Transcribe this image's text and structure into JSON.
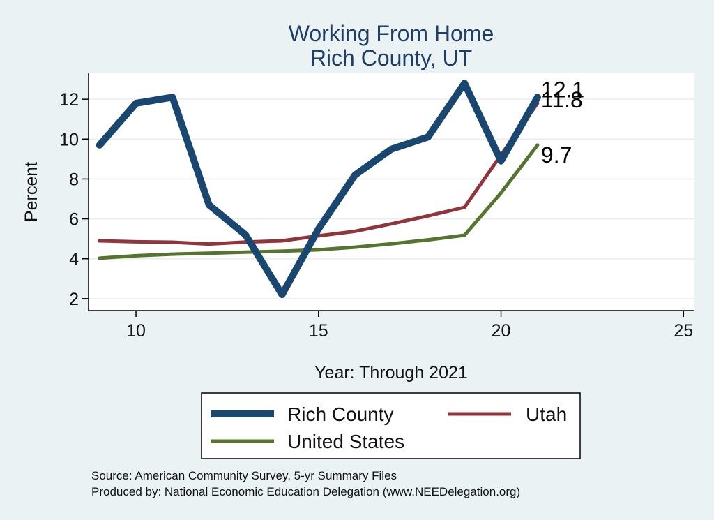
{
  "chart_data": {
    "type": "line",
    "title": "Working From Home",
    "subtitle": "Rich County, UT",
    "xlabel": "Year: Through 2021",
    "ylabel": "Percent",
    "xlim": [
      8.7,
      25.3
    ],
    "ylim": [
      1.4,
      13.3
    ],
    "x_ticks": [
      10,
      15,
      20,
      25
    ],
    "y_ticks": [
      2,
      4,
      6,
      8,
      10,
      12
    ],
    "grid": true,
    "legend_position": "bottom",
    "x": [
      9,
      10,
      11,
      12,
      13,
      14,
      15,
      16,
      17,
      18,
      19,
      20,
      21
    ],
    "series": [
      {
        "name": "Rich County",
        "color": "#1a476f",
        "values": [
          9.7,
          11.8,
          12.1,
          6.7,
          5.2,
          2.2,
          5.5,
          8.2,
          9.5,
          10.1,
          12.8,
          8.9,
          12.1
        ],
        "end_label": "12.1"
      },
      {
        "name": "Utah",
        "color": "#90353b",
        "values": [
          4.9,
          4.85,
          4.83,
          4.74,
          4.84,
          4.9,
          5.15,
          5.38,
          5.75,
          6.15,
          6.58,
          9.2,
          11.8
        ],
        "end_label": "11.8"
      },
      {
        "name": "United States",
        "color": "#55752f",
        "values": [
          4.03,
          4.15,
          4.23,
          4.28,
          4.33,
          4.38,
          4.45,
          4.58,
          4.75,
          4.95,
          5.18,
          7.3,
          9.7
        ],
        "end_label": "9.7"
      }
    ],
    "source_lines": [
      "Source: American Community Survey, 5-yr Summary Files",
      "Produced by: National Economic Education Delegation (www.NEEDelegation.org)"
    ]
  }
}
